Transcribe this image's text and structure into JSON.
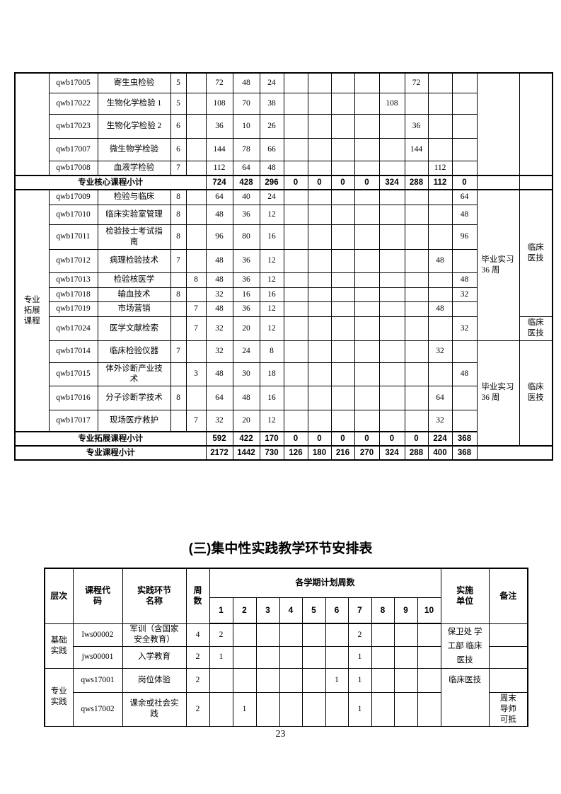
{
  "top_table": {
    "rows": [
      {
        "code": "qwb17005",
        "name": "寄生虫检验",
        "c1": "5",
        "c2": "",
        "total": "72",
        "theory": "48",
        "practice": "24",
        "sem": [
          "",
          "",
          "",
          "",
          "",
          "72",
          "",
          ""
        ]
      },
      {
        "code": "qwb17022",
        "name": "生物化学检验 1",
        "c1": "5",
        "c2": "",
        "total": "108",
        "theory": "70",
        "practice": "38",
        "sem": [
          "",
          "",
          "",
          "",
          "108",
          "",
          "",
          ""
        ]
      },
      {
        "code": "qwb17023",
        "name": "生物化学检验 2",
        "c1": "6",
        "c2": "",
        "total": "36",
        "theory": "10",
        "practice": "26",
        "sem": [
          "",
          "",
          "",
          "",
          "",
          "36",
          "",
          ""
        ]
      },
      {
        "code": "qwb17007",
        "name": "微生物学检验",
        "c1": "6",
        "c2": "",
        "total": "144",
        "theory": "78",
        "practice": "66",
        "sem": [
          "",
          "",
          "",
          "",
          "",
          "144",
          "",
          ""
        ]
      },
      {
        "code": "qwb17008",
        "name": "血液学检验",
        "c1": "7",
        "c2": "",
        "total": "112",
        "theory": "64",
        "practice": "48",
        "sem": [
          "",
          "",
          "",
          "",
          "",
          "",
          "112",
          ""
        ]
      },
      {
        "code": "qwb17009",
        "name": "检验与临床",
        "c1": "8",
        "c2": "",
        "total": "64",
        "theory": "40",
        "practice": "24",
        "sem": [
          "",
          "",
          "",
          "",
          "",
          "",
          "",
          "64"
        ]
      },
      {
        "code": "qwb17010",
        "name": "临床实验室管理",
        "c1": "8",
        "c2": "",
        "total": "48",
        "theory": "36",
        "practice": "12",
        "sem": [
          "",
          "",
          "",
          "",
          "",
          "",
          "",
          "48"
        ]
      },
      {
        "code": "qwb17011",
        "name": "检验技士考试指南",
        "c1": "8",
        "c2": "",
        "total": "96",
        "theory": "80",
        "practice": "16",
        "sem": [
          "",
          "",
          "",
          "",
          "",
          "",
          "",
          "96"
        ]
      },
      {
        "code": "qwb17012",
        "name": "病理检验技术",
        "c1": "7",
        "c2": "",
        "total": "48",
        "theory": "36",
        "practice": "12",
        "sem": [
          "",
          "",
          "",
          "",
          "",
          "",
          "48",
          ""
        ]
      },
      {
        "code": "qwb17013",
        "name": "检验核医学",
        "c1": "",
        "c2": "8",
        "total": "48",
        "theory": "36",
        "practice": "12",
        "sem": [
          "",
          "",
          "",
          "",
          "",
          "",
          "",
          "48"
        ]
      },
      {
        "code": "qwb17018",
        "name": "输血技术",
        "c1": "8",
        "c2": "",
        "total": "32",
        "theory": "16",
        "practice": "16",
        "sem": [
          "",
          "",
          "",
          "",
          "",
          "",
          "",
          "32"
        ]
      },
      {
        "code": "qwb17019",
        "name": "市场营销",
        "c1": "",
        "c2": "7",
        "total": "48",
        "theory": "36",
        "practice": "12",
        "sem": [
          "",
          "",
          "",
          "",
          "",
          "",
          "48",
          ""
        ]
      },
      {
        "code": "qwb17024",
        "name": "医学文献检索",
        "c1": "",
        "c2": "7",
        "total": "32",
        "theory": "20",
        "practice": "12",
        "sem": [
          "",
          "",
          "",
          "",
          "",
          "",
          "",
          "32"
        ]
      },
      {
        "code": "qwb17014",
        "name": "临床检验仪器",
        "c1": "7",
        "c2": "",
        "total": "32",
        "theory": "24",
        "practice": "8",
        "sem": [
          "",
          "",
          "",
          "",
          "",
          "",
          "32",
          ""
        ]
      },
      {
        "code": "qwb17015",
        "name": "体外诊断产业技术",
        "c1": "",
        "c2": "3",
        "total": "48",
        "theory": "30",
        "practice": "18",
        "sem": [
          "",
          "",
          "",
          "",
          "",
          "",
          "",
          "48"
        ]
      },
      {
        "code": "qwb17016",
        "name": "分子诊断学技术",
        "c1": "8",
        "c2": "",
        "total": "64",
        "theory": "48",
        "practice": "16",
        "sem": [
          "",
          "",
          "",
          "",
          "",
          "",
          "64",
          ""
        ]
      },
      {
        "code": "qwb17017",
        "name": "现场医疗救护",
        "c1": "",
        "c2": "7",
        "total": "32",
        "theory": "20",
        "practice": "12",
        "sem": [
          "",
          "",
          "",
          "",
          "",
          "",
          "32",
          ""
        ]
      }
    ],
    "category_ext": "专业拓展课程",
    "internship_note": "毕业实习 36 周",
    "dept": "临床医技",
    "subtotal_core": {
      "label": "专业核心课程小计",
      "values": [
        "724",
        "428",
        "296",
        "0",
        "0",
        "0",
        "0",
        "324",
        "288",
        "112",
        "0"
      ]
    },
    "subtotal_ext": {
      "label": "专业拓展课程小计",
      "values": [
        "592",
        "422",
        "170",
        "0",
        "0",
        "0",
        "0",
        "0",
        "0",
        "224",
        "368"
      ]
    },
    "total": {
      "label": "专业课程小计",
      "values": [
        "2172",
        "1442",
        "730",
        "126",
        "180",
        "216",
        "270",
        "324",
        "288",
        "400",
        "368"
      ]
    }
  },
  "section_title": "(三)集中性实践教学环节安排表",
  "practice_table": {
    "headers": {
      "level": "层次",
      "code": "课程代码",
      "name": "实践环节名称",
      "weeks": "周数",
      "semesters_group": "各学期计划周数",
      "semesters": [
        "1",
        "2",
        "3",
        "4",
        "5",
        "6",
        "7",
        "8",
        "9",
        "10"
      ],
      "dept": "实施单位",
      "note": "备注"
    },
    "groups": [
      {
        "level": "基础实践",
        "dept": "保卫处 学工部 临床医技",
        "rows": [
          {
            "code": "lws00002",
            "name": "军训（含国家安全教育）",
            "weeks": "4",
            "sem": [
              "2",
              "",
              "",
              "",
              "",
              "",
              "2",
              "",
              "",
              ""
            ],
            "note": ""
          },
          {
            "code": "jws00001",
            "name": "入学教育",
            "weeks": "2",
            "sem": [
              "1",
              "",
              "",
              "",
              "",
              "",
              "1",
              "",
              "",
              ""
            ],
            "note": ""
          }
        ]
      },
      {
        "level": "专业实践",
        "dept": "临床医技",
        "rows": [
          {
            "code": "qws17001",
            "name": "岗位体验",
            "weeks": "2",
            "sem": [
              "",
              "",
              "",
              "",
              "",
              "1",
              "1",
              "",
              "",
              ""
            ],
            "note": ""
          },
          {
            "code": "qws17002",
            "name": "课余或社会实践",
            "weeks": "2",
            "sem": [
              "",
              "1",
              "",
              "",
              "",
              "",
              "1",
              "",
              "",
              ""
            ],
            "note": "周末导师可抵"
          }
        ]
      }
    ]
  },
  "page_number": "23"
}
